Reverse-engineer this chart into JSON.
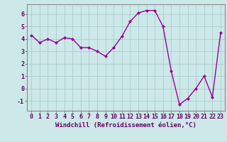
{
  "x": [
    0,
    1,
    2,
    3,
    4,
    5,
    6,
    7,
    8,
    9,
    10,
    11,
    12,
    13,
    14,
    15,
    16,
    17,
    18,
    19,
    20,
    21,
    22,
    23
  ],
  "y": [
    4.3,
    3.7,
    4.0,
    3.7,
    4.1,
    4.0,
    3.3,
    3.3,
    3.0,
    2.6,
    3.3,
    4.2,
    5.4,
    6.1,
    6.3,
    6.3,
    5.0,
    1.4,
    -1.3,
    -0.8,
    0.0,
    1.0,
    -0.7,
    4.5
  ],
  "line_color": "#990099",
  "marker": "D",
  "marker_size": 2.0,
  "linewidth": 1.0,
  "bg_color": "#cce8e8",
  "grid_color": "#aacccc",
  "xlabel": "Windchill (Refroidissement éolien,°C)",
  "xlabel_fontsize": 6.5,
  "tick_fontsize": 6,
  "ylim": [
    -1.8,
    6.8
  ],
  "xlim": [
    -0.5,
    23.5
  ],
  "yticks": [
    -1,
    0,
    1,
    2,
    3,
    4,
    5,
    6
  ],
  "xticks": [
    0,
    1,
    2,
    3,
    4,
    5,
    6,
    7,
    8,
    9,
    10,
    11,
    12,
    13,
    14,
    15,
    16,
    17,
    18,
    19,
    20,
    21,
    22,
    23
  ]
}
